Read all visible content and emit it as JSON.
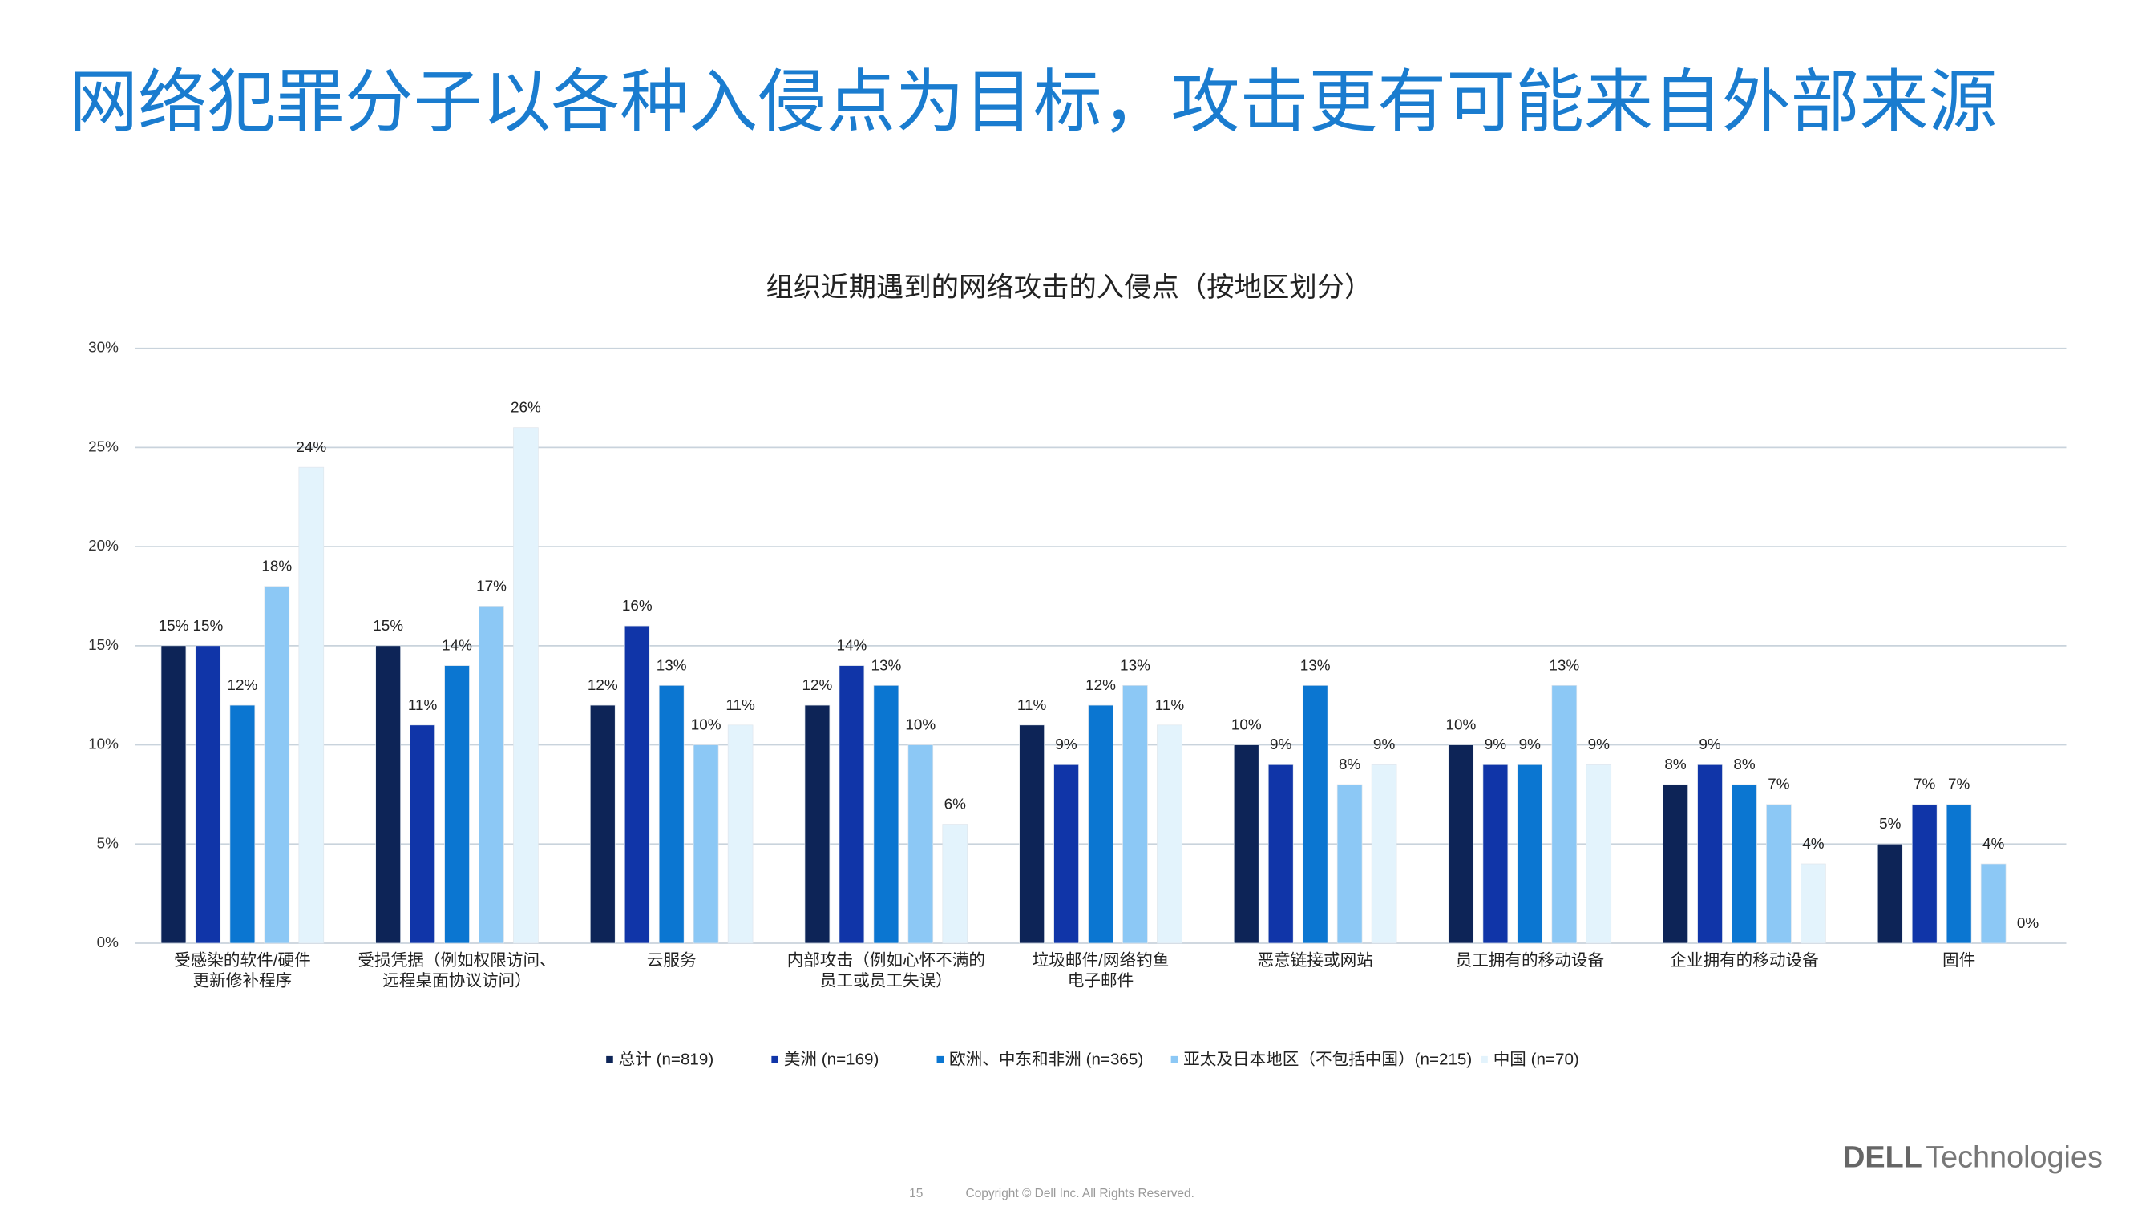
{
  "page": {
    "title": "网络犯罪分子以各种入侵点为目标，攻击更有可能来自外部来源",
    "page_number": "15",
    "copyright": "Copyright © Dell Inc. All Rights Reserved.",
    "logo_dell": "DELL",
    "logo_tech": "Technologies"
  },
  "chart_data": {
    "type": "bar",
    "title": "组织近期遇到的网络攻击的入侵点（按地区划分）",
    "categories": [
      [
        "受感染的软件/硬件",
        "更新修补程序"
      ],
      [
        "受损凭据（例如权限访问、",
        "远程桌面协议访问）"
      ],
      [
        "云服务"
      ],
      [
        "内部攻击（例如心怀不满的",
        "员工或员工失误）"
      ],
      [
        "垃圾邮件/网络钓鱼",
        "电子邮件"
      ],
      [
        "恶意链接或网站"
      ],
      [
        "员工拥有的移动设备"
      ],
      [
        "企业拥有的移动设备"
      ],
      [
        "固件"
      ]
    ],
    "series": [
      {
        "name": "总计 (n=819)",
        "color": "#0d2457",
        "values": [
          15,
          15,
          12,
          12,
          11,
          10,
          10,
          8,
          5
        ],
        "value_labels": [
          "15%",
          "15%",
          "12%",
          "12%",
          "11%",
          "10%",
          "10%",
          "8%",
          "5%"
        ]
      },
      {
        "name": "美洲 (n=169)",
        "color": "#1035a8",
        "values": [
          15,
          11,
          16,
          14,
          9,
          9,
          9,
          9,
          7
        ],
        "value_labels": [
          "15%",
          "11%",
          "16%",
          "14%",
          "9%",
          "9%",
          "9%",
          "9%",
          "7%"
        ]
      },
      {
        "name": "欧洲、中东和非洲 (n=365)",
        "color": "#0b76d1",
        "values": [
          12,
          14,
          13,
          13,
          12,
          13,
          9,
          8,
          7
        ],
        "value_labels": [
          "12%",
          "14%",
          "13%",
          "13%",
          "12%",
          "13%",
          "9%",
          "8%",
          "7%"
        ]
      },
      {
        "name": "亚太及日本地区（不包括中国）(n=215)",
        "color": "#8cc8f5",
        "values": [
          18,
          17,
          10,
          10,
          13,
          8,
          13,
          7,
          4
        ],
        "value_labels": [
          "18%",
          "17%",
          "10%",
          "10%",
          "13%",
          "8%",
          "13%",
          "7%",
          "4%"
        ]
      },
      {
        "name": "中国 (n=70)",
        "color": "#e3f3fc",
        "values": [
          24,
          26,
          11,
          6,
          11,
          9,
          9,
          4,
          0
        ],
        "value_labels": [
          "24%",
          "26%",
          "11%",
          "6%",
          "11%",
          "9%",
          "9%",
          "4%",
          "0%"
        ]
      }
    ],
    "ylim": [
      0,
      30
    ],
    "yticks": [
      {
        "value": 0,
        "label": "0%"
      },
      {
        "value": 5,
        "label": "5%"
      },
      {
        "value": 10,
        "label": "10%"
      },
      {
        "value": 15,
        "label": "15%"
      },
      {
        "value": 20,
        "label": "20%"
      },
      {
        "value": 25,
        "label": "25%"
      },
      {
        "value": 30,
        "label": "30%"
      }
    ],
    "grid": true
  }
}
